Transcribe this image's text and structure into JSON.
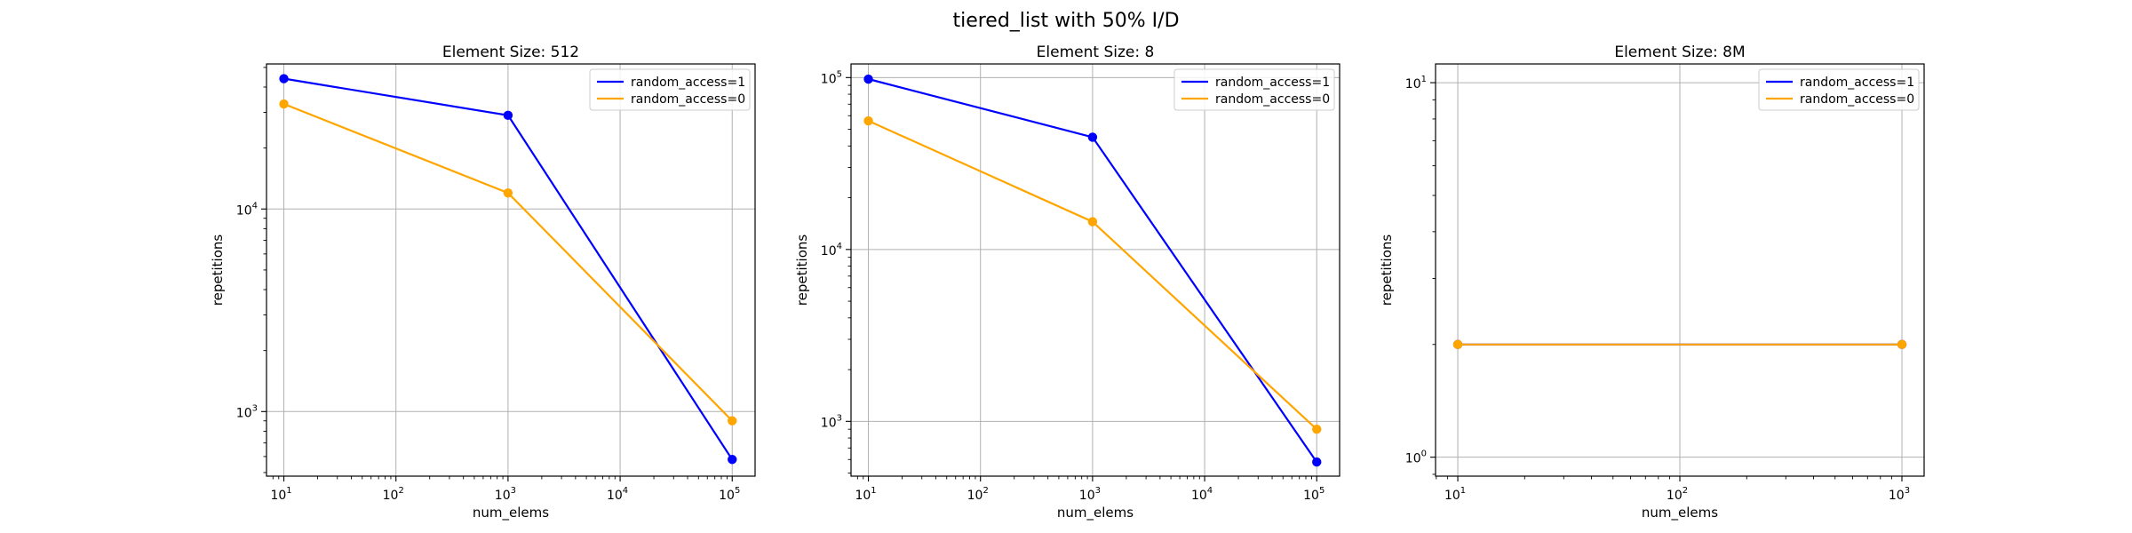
{
  "figure": {
    "suptitle": "tiered_list with 50% I/D"
  },
  "colors": {
    "random_access_1": "#0000ff",
    "random_access_0": "#ffa500",
    "grid": "#b0b0b0"
  },
  "chart_data": [
    {
      "type": "line",
      "title": "Element Size: 512",
      "xlabel": "num_elems",
      "ylabel": "repetitions",
      "xscale": "log",
      "yscale": "log",
      "xlim": [
        7,
        160000
      ],
      "ylim": [
        480,
        52000
      ],
      "xticks": [
        {
          "value": 10,
          "base": "10",
          "exp": "1"
        },
        {
          "value": 100,
          "base": "10",
          "exp": "2"
        },
        {
          "value": 1000,
          "base": "10",
          "exp": "3"
        },
        {
          "value": 10000,
          "base": "10",
          "exp": "4"
        },
        {
          "value": 100000,
          "base": "10",
          "exp": "5"
        }
      ],
      "yticks": [
        {
          "value": 1000,
          "base": "10",
          "exp": "3"
        },
        {
          "value": 10000,
          "base": "10",
          "exp": "4"
        }
      ],
      "grid": true,
      "legend_position": "top-right",
      "series": [
        {
          "name": "random_access=1",
          "color": "#0000ff",
          "x": [
            10,
            1000,
            100000
          ],
          "y": [
            44000,
            29000,
            580
          ]
        },
        {
          "name": "random_access=0",
          "color": "#ffa500",
          "x": [
            10,
            1000,
            100000
          ],
          "y": [
            33000,
            12000,
            900
          ]
        }
      ]
    },
    {
      "type": "line",
      "title": "Element Size: 8",
      "xlabel": "num_elems",
      "ylabel": "repetitions",
      "xscale": "log",
      "yscale": "log",
      "xlim": [
        7,
        160000
      ],
      "ylim": [
        480,
        120000
      ],
      "xticks": [
        {
          "value": 10,
          "base": "10",
          "exp": "1"
        },
        {
          "value": 100,
          "base": "10",
          "exp": "2"
        },
        {
          "value": 1000,
          "base": "10",
          "exp": "3"
        },
        {
          "value": 10000,
          "base": "10",
          "exp": "4"
        },
        {
          "value": 100000,
          "base": "10",
          "exp": "5"
        }
      ],
      "yticks": [
        {
          "value": 1000,
          "base": "10",
          "exp": "3"
        },
        {
          "value": 10000,
          "base": "10",
          "exp": "4"
        },
        {
          "value": 100000,
          "base": "10",
          "exp": "5"
        }
      ],
      "grid": true,
      "legend_position": "top-right",
      "series": [
        {
          "name": "random_access=1",
          "color": "#0000ff",
          "x": [
            10,
            1000,
            100000
          ],
          "y": [
            98000,
            45000,
            580
          ]
        },
        {
          "name": "random_access=0",
          "color": "#ffa500",
          "x": [
            10,
            1000,
            100000
          ],
          "y": [
            56000,
            14500,
            900
          ]
        }
      ]
    },
    {
      "type": "line",
      "title": "Element Size: 8M",
      "xlabel": "num_elems",
      "ylabel": "repetitions",
      "xscale": "log",
      "yscale": "log",
      "xlim": [
        7.94,
        1259
      ],
      "ylim": [
        0.89,
        11.22
      ],
      "xticks": [
        {
          "value": 10,
          "base": "10",
          "exp": "1"
        },
        {
          "value": 100,
          "base": "10",
          "exp": "2"
        },
        {
          "value": 1000,
          "base": "10",
          "exp": "3"
        }
      ],
      "yticks": [
        {
          "value": 1,
          "base": "10",
          "exp": "0"
        },
        {
          "value": 10,
          "base": "10",
          "exp": "1"
        }
      ],
      "grid": true,
      "legend_position": "top-right",
      "series": [
        {
          "name": "random_access=1",
          "color": "#0000ff",
          "x": [
            10,
            1000
          ],
          "y": [
            2,
            2
          ]
        },
        {
          "name": "random_access=0",
          "color": "#ffa500",
          "x": [
            10,
            1000
          ],
          "y": [
            2,
            2
          ]
        }
      ]
    }
  ]
}
